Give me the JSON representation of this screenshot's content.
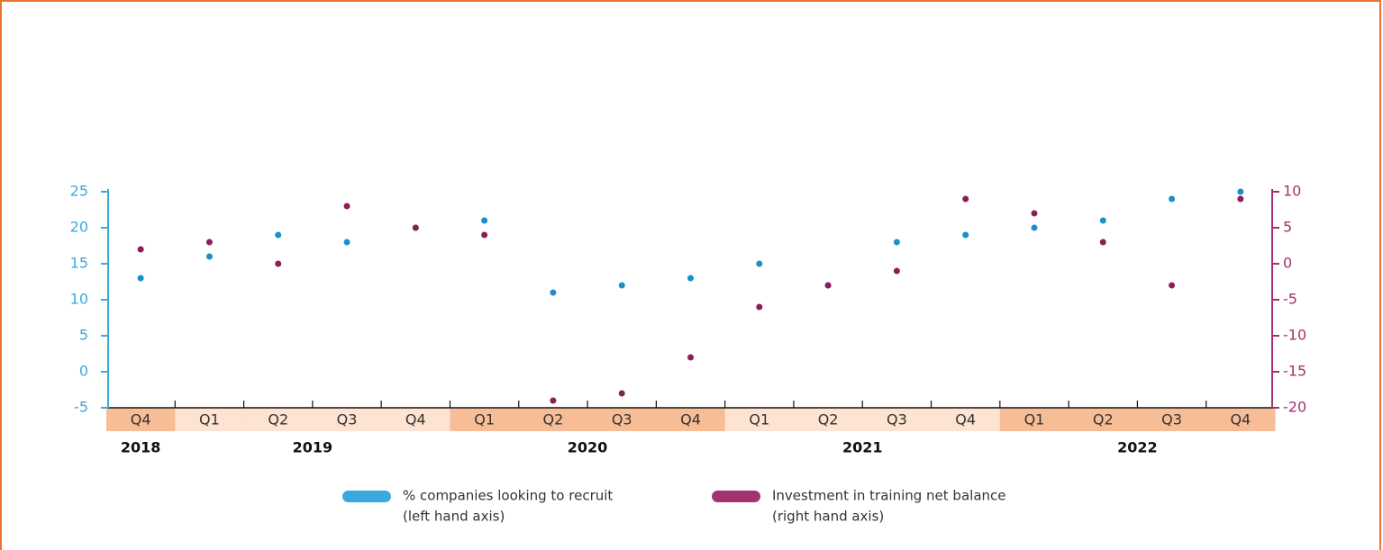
{
  "chart_data": {
    "type": "line",
    "groups": [
      {
        "label": "2018",
        "quarters": [
          "Q4"
        ]
      },
      {
        "label": "2019",
        "quarters": [
          "Q1",
          "Q2",
          "Q3",
          "Q4"
        ]
      },
      {
        "label": "2020",
        "quarters": [
          "Q1",
          "Q2",
          "Q3",
          "Q4"
        ]
      },
      {
        "label": "2021",
        "quarters": [
          "Q1",
          "Q2",
          "Q3",
          "Q4"
        ]
      },
      {
        "label": "2022",
        "quarters": [
          "Q1",
          "Q2",
          "Q3",
          "Q4"
        ]
      }
    ],
    "group_colors": [
      "#f7bd97",
      "#fde3d1"
    ],
    "series": [
      {
        "name": "% companies looking to recruit",
        "note": "(left hand axis)",
        "color": "#3aa9dd",
        "point_color": "#1d8fc6",
        "axis": "y",
        "values": [
          13,
          16,
          19,
          18,
          20,
          21,
          11,
          12,
          13,
          15,
          12,
          18,
          19,
          20,
          21,
          24,
          25
        ]
      },
      {
        "name": "Investment in training net balance",
        "note": "(right hand axis)",
        "color": "#a3336e",
        "point_color": "#8a1f57",
        "axis": "y2",
        "values": [
          2,
          3,
          0,
          8,
          5,
          4,
          -19,
          -18,
          -13,
          -6,
          -3,
          -1,
          9,
          7,
          3,
          -3,
          9
        ]
      }
    ],
    "ylim": [
      -5,
      25
    ],
    "yticks": [
      -5,
      0,
      5,
      10,
      15,
      20,
      25
    ],
    "y2lim": [
      -20,
      10
    ],
    "y2ticks": [
      -20,
      -15,
      -10,
      -5,
      0,
      5,
      10
    ]
  }
}
